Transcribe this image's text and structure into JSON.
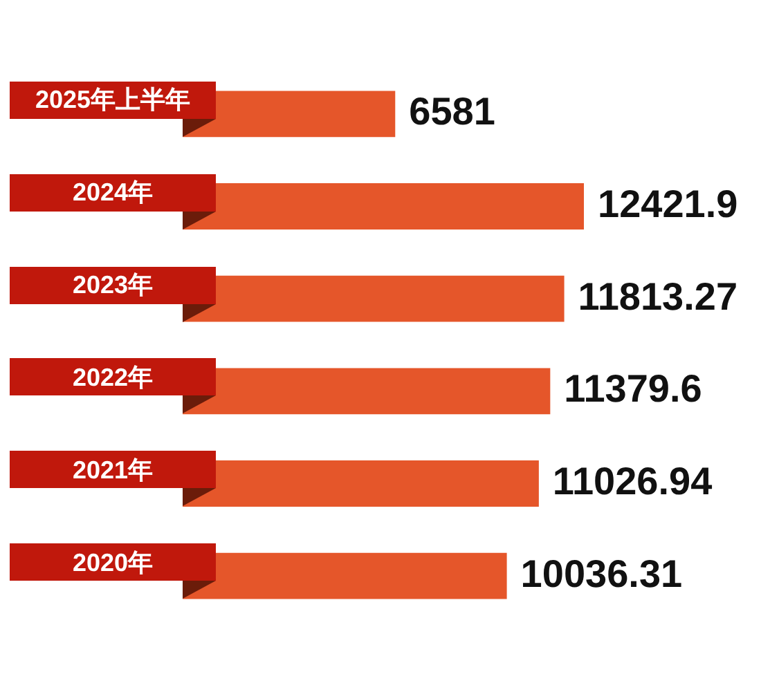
{
  "chart_data": {
    "type": "bar",
    "orientation": "horizontal",
    "categories": [
      "2025年上半年",
      "2024年",
      "2023年",
      "2022年",
      "2021年",
      "2020年"
    ],
    "values": [
      6581,
      12421.9,
      11813.27,
      11379.6,
      11026.94,
      10036.31
    ],
    "color": "#e5562a",
    "data_labels": true,
    "tick_labels": "y"
  }
}
